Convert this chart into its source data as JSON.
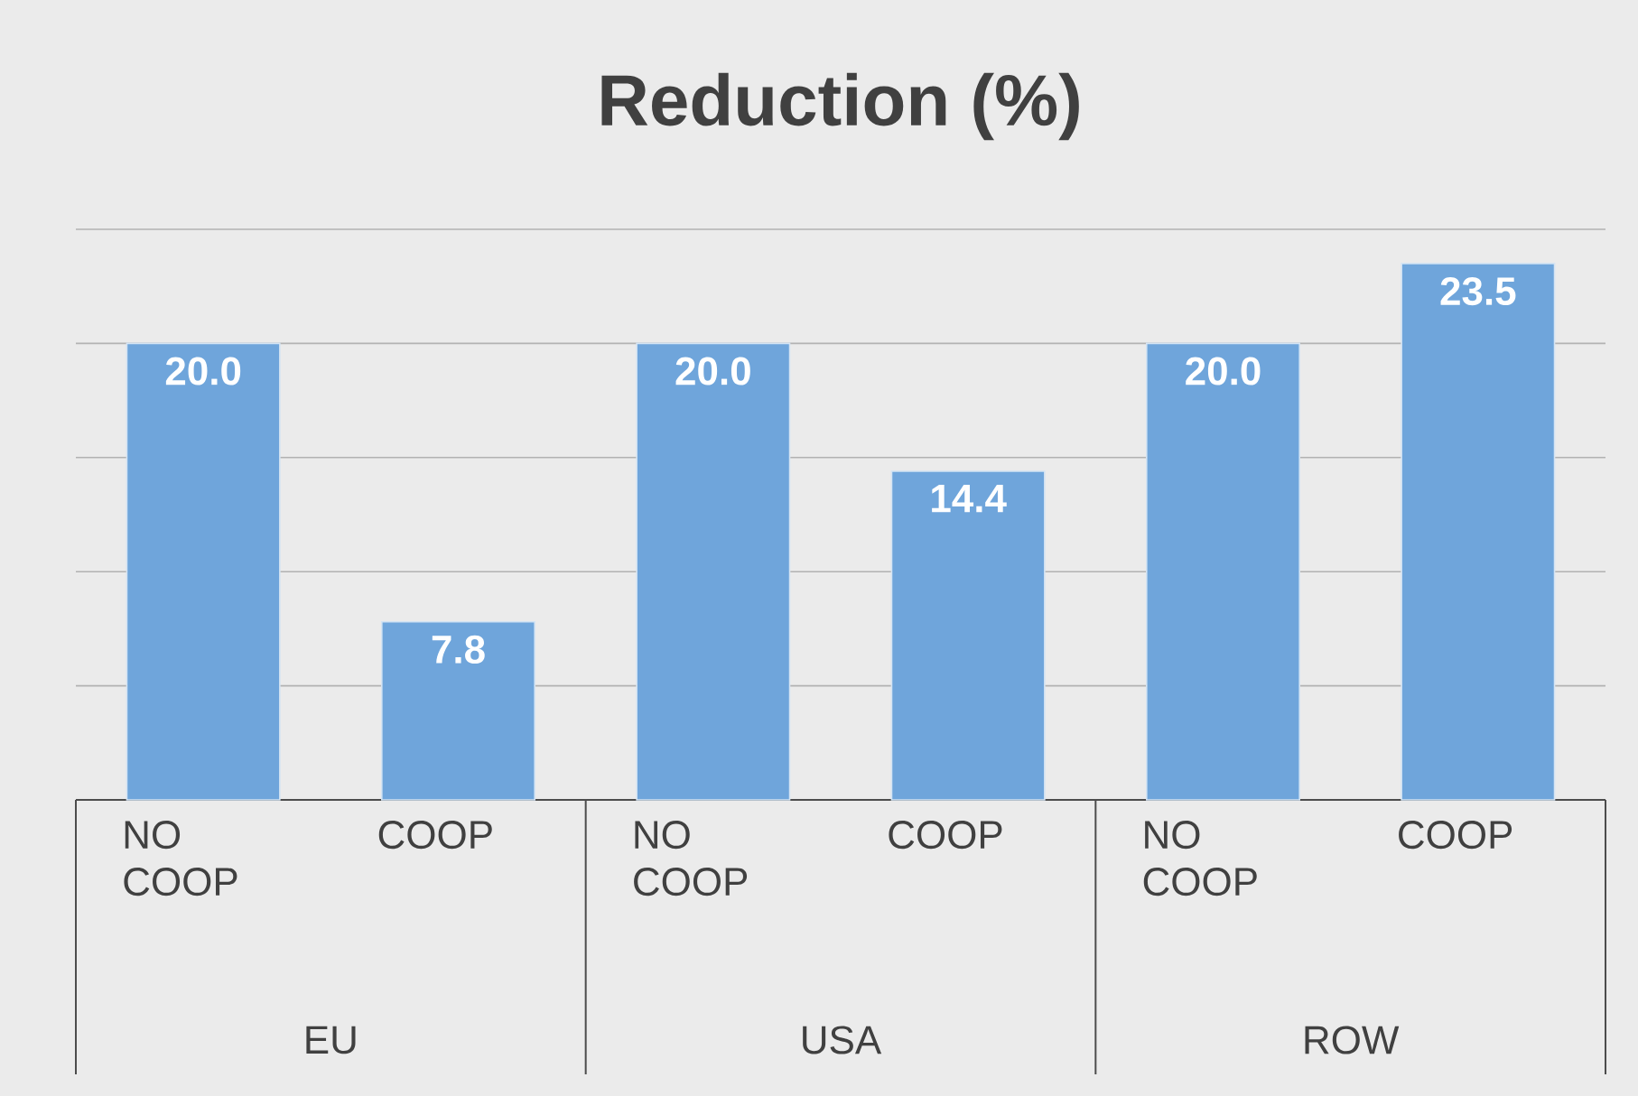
{
  "chart_data": {
    "type": "bar",
    "title": "Reduction (%)",
    "categories": [
      "NO COOP",
      "COOP",
      "NO COOP",
      "COOP",
      "NO COOP",
      "COOP"
    ],
    "values": [
      20.0,
      7.8,
      20.0,
      14.4,
      20.0,
      23.5
    ],
    "value_labels": [
      "20.0",
      "7.8",
      "20.0",
      "14.4",
      "20.0",
      "23.5"
    ],
    "color": "#6fa5db",
    "annotations": [
      "EU",
      "USA",
      "ROW"
    ],
    "ylim": [
      0,
      25
    ],
    "yticks": [
      {
        "value": 5,
        "label": null
      },
      {
        "value": 10,
        "label": null
      },
      {
        "value": 15,
        "label": null
      },
      {
        "value": 20,
        "label": null
      },
      {
        "value": 25,
        "label": null
      }
    ],
    "tick_labels": "x",
    "grid": "y"
  }
}
